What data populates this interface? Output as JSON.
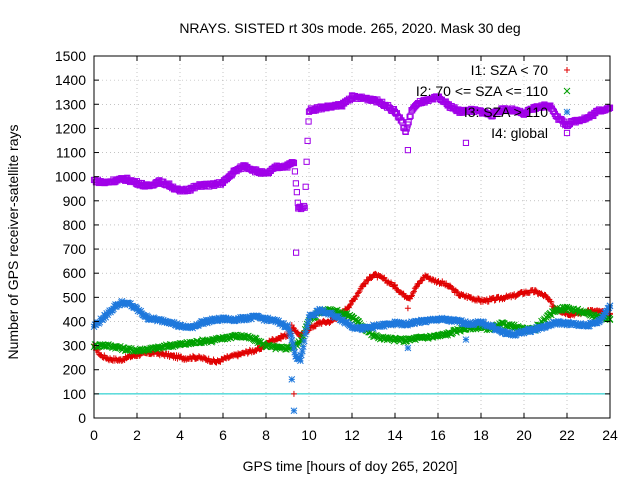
{
  "chart_data": {
    "type": "scatter",
    "title": "NRAYS. SISTED rt 30s mode. 265, 2020. Mask 30 deg",
    "xlabel": "GPS time [hours of doy 265, 2020]",
    "ylabel": "Number of GPS receiver-satellite rays",
    "xlim": [
      0,
      24
    ],
    "ylim": [
      0,
      1500
    ],
    "x_ticks": [
      "0",
      "2",
      "4",
      "6",
      "8",
      "10",
      "12",
      "14",
      "16",
      "18",
      "20",
      "22",
      "24"
    ],
    "y_ticks": [
      "0",
      "100",
      "200",
      "300",
      "400",
      "500",
      "600",
      "700",
      "800",
      "900",
      "1000",
      "1100",
      "1200",
      "1300",
      "1400",
      "1500"
    ],
    "grid": true,
    "legend_position": "top-right",
    "reference_line": {
      "y": 100,
      "color": "#00C8C8"
    },
    "series": [
      {
        "name": "I1: SZA < 70",
        "marker": "+",
        "color": "#E00000",
        "points": [
          [
            0,
            300
          ],
          [
            0.3,
            260
          ],
          [
            0.7,
            245
          ],
          [
            1.2,
            240
          ],
          [
            1.7,
            255
          ],
          [
            2.2,
            265
          ],
          [
            2.7,
            270
          ],
          [
            3.2,
            265
          ],
          [
            3.7,
            255
          ],
          [
            4.2,
            248
          ],
          [
            4.7,
            252
          ],
          [
            5.2,
            245
          ],
          [
            5.7,
            232
          ],
          [
            6.2,
            250
          ],
          [
            6.7,
            262
          ],
          [
            7.2,
            275
          ],
          [
            7.7,
            285
          ],
          [
            8.2,
            320
          ],
          [
            8.7,
            335
          ],
          [
            9.0,
            345
          ],
          [
            9.3,
            370
          ],
          [
            9.6,
            340
          ],
          [
            10.0,
            370
          ],
          [
            10.5,
            395
          ],
          [
            11.0,
            400
          ],
          [
            11.5,
            430
          ],
          [
            12.0,
            480
          ],
          [
            12.5,
            550
          ],
          [
            13.0,
            595
          ],
          [
            13.5,
            575
          ],
          [
            14.0,
            545
          ],
          [
            14.4,
            510
          ],
          [
            14.7,
            500
          ],
          [
            15.0,
            545
          ],
          [
            15.4,
            590
          ],
          [
            15.8,
            570
          ],
          [
            16.2,
            560
          ],
          [
            16.6,
            540
          ],
          [
            17.0,
            510
          ],
          [
            17.5,
            500
          ],
          [
            18.0,
            485
          ],
          [
            18.5,
            490
          ],
          [
            19.0,
            498
          ],
          [
            19.5,
            505
          ],
          [
            20.0,
            520
          ],
          [
            20.5,
            525
          ],
          [
            21.0,
            505
          ],
          [
            21.4,
            460
          ],
          [
            21.8,
            440
          ],
          [
            22.2,
            430
          ],
          [
            22.6,
            435
          ],
          [
            23.0,
            445
          ],
          [
            23.5,
            440
          ],
          [
            24.0,
            430
          ]
        ]
      },
      {
        "name": "I2: 70 <= SZA <= 110",
        "marker": "x",
        "color": "#00A000",
        "points": [
          [
            0,
            300
          ],
          [
            0.5,
            302
          ],
          [
            1.0,
            295
          ],
          [
            1.5,
            285
          ],
          [
            2.0,
            280
          ],
          [
            2.5,
            285
          ],
          [
            3.0,
            290
          ],
          [
            3.5,
            300
          ],
          [
            4.0,
            305
          ],
          [
            4.5,
            310
          ],
          [
            5.0,
            318
          ],
          [
            5.5,
            322
          ],
          [
            6.0,
            330
          ],
          [
            6.5,
            340
          ],
          [
            7.0,
            338
          ],
          [
            7.5,
            325
          ],
          [
            8.0,
            300
          ],
          [
            8.5,
            290
          ],
          [
            9.0,
            290
          ],
          [
            9.3,
            300
          ],
          [
            9.6,
            315
          ],
          [
            10.0,
            405
          ],
          [
            10.5,
            440
          ],
          [
            11.0,
            450
          ],
          [
            11.5,
            435
          ],
          [
            12.0,
            420
          ],
          [
            12.5,
            380
          ],
          [
            13.0,
            340
          ],
          [
            13.5,
            330
          ],
          [
            14.0,
            325
          ],
          [
            14.5,
            322
          ],
          [
            15.0,
            330
          ],
          [
            15.5,
            335
          ],
          [
            16.0,
            340
          ],
          [
            16.5,
            350
          ],
          [
            17.0,
            365
          ],
          [
            17.5,
            375
          ],
          [
            18.0,
            375
          ],
          [
            18.5,
            370
          ],
          [
            19.0,
            390
          ],
          [
            19.5,
            380
          ],
          [
            20.0,
            365
          ],
          [
            20.5,
            370
          ],
          [
            21.0,
            410
          ],
          [
            21.5,
            450
          ],
          [
            22.0,
            455
          ],
          [
            22.5,
            445
          ],
          [
            23.0,
            430
          ],
          [
            23.5,
            420
          ],
          [
            24.0,
            410
          ]
        ]
      },
      {
        "name": "I3: SZA > 110",
        "marker": "*",
        "color": "#1E78DC",
        "points": [
          [
            0,
            380
          ],
          [
            0.5,
            420
          ],
          [
            1.0,
            465
          ],
          [
            1.3,
            478
          ],
          [
            1.7,
            470
          ],
          [
            2.0,
            450
          ],
          [
            2.5,
            415
          ],
          [
            3.0,
            405
          ],
          [
            3.5,
            400
          ],
          [
            4.0,
            380
          ],
          [
            4.5,
            375
          ],
          [
            5.0,
            395
          ],
          [
            5.5,
            405
          ],
          [
            6.0,
            410
          ],
          [
            6.5,
            408
          ],
          [
            7.0,
            412
          ],
          [
            7.5,
            418
          ],
          [
            8.0,
            410
          ],
          [
            8.5,
            400
          ],
          [
            9.0,
            380
          ],
          [
            9.2,
            330
          ],
          [
            9.4,
            250
          ],
          [
            9.6,
            238
          ],
          [
            10.0,
            420
          ],
          [
            10.5,
            445
          ],
          [
            11.0,
            430
          ],
          [
            11.5,
            410
          ],
          [
            12.0,
            380
          ],
          [
            12.5,
            370
          ],
          [
            13.0,
            378
          ],
          [
            13.5,
            385
          ],
          [
            14.0,
            392
          ],
          [
            14.5,
            388
          ],
          [
            15.0,
            398
          ],
          [
            15.5,
            402
          ],
          [
            16.0,
            410
          ],
          [
            16.5,
            405
          ],
          [
            17.0,
            400
          ],
          [
            17.5,
            390
          ],
          [
            18.0,
            395
          ],
          [
            18.5,
            380
          ],
          [
            19.0,
            355
          ],
          [
            19.5,
            345
          ],
          [
            20.0,
            358
          ],
          [
            20.5,
            368
          ],
          [
            21.0,
            380
          ],
          [
            21.5,
            395
          ],
          [
            22.0,
            392
          ],
          [
            22.5,
            386
          ],
          [
            23.0,
            385
          ],
          [
            23.5,
            400
          ],
          [
            24.0,
            465
          ]
        ]
      },
      {
        "name": "I4: global",
        "marker": "square",
        "color": "#A000E8",
        "points": [
          [
            0,
            985
          ],
          [
            0.5,
            975
          ],
          [
            1.0,
            985
          ],
          [
            1.5,
            990
          ],
          [
            2.0,
            975
          ],
          [
            2.5,
            960
          ],
          [
            3.0,
            980
          ],
          [
            3.5,
            965
          ],
          [
            4.0,
            940
          ],
          [
            4.5,
            950
          ],
          [
            5.0,
            965
          ],
          [
            5.5,
            965
          ],
          [
            6.0,
            975
          ],
          [
            6.5,
            1020
          ],
          [
            7.0,
            1045
          ],
          [
            7.5,
            1025
          ],
          [
            8.0,
            1010
          ],
          [
            8.5,
            1040
          ],
          [
            9.0,
            1045
          ],
          [
            9.3,
            1060
          ],
          [
            9.5,
            870
          ],
          [
            9.8,
            875
          ],
          [
            10.0,
            1275
          ],
          [
            10.5,
            1285
          ],
          [
            11.0,
            1290
          ],
          [
            11.5,
            1295
          ],
          [
            12.0,
            1330
          ],
          [
            12.5,
            1325
          ],
          [
            13.0,
            1320
          ],
          [
            13.5,
            1300
          ],
          [
            14.0,
            1270
          ],
          [
            14.3,
            1230
          ],
          [
            14.5,
            1185
          ],
          [
            14.8,
            1280
          ],
          [
            15.2,
            1310
          ],
          [
            15.6,
            1315
          ],
          [
            16.0,
            1330
          ],
          [
            16.5,
            1295
          ],
          [
            17.0,
            1270
          ],
          [
            17.5,
            1275
          ],
          [
            18.0,
            1270
          ],
          [
            18.5,
            1255
          ],
          [
            19.0,
            1280
          ],
          [
            19.5,
            1275
          ],
          [
            20.0,
            1260
          ],
          [
            20.5,
            1285
          ],
          [
            21.0,
            1295
          ],
          [
            21.3,
            1285
          ],
          [
            21.6,
            1240
          ],
          [
            22.0,
            1215
          ],
          [
            22.5,
            1235
          ],
          [
            23.0,
            1245
          ],
          [
            23.5,
            1275
          ],
          [
            24.0,
            1285
          ]
        ]
      }
    ],
    "outliers": {
      "I4: global": [
        [
          9.2,
          1060
        ],
        [
          9.4,
          685
        ],
        [
          14.6,
          1110
        ],
        [
          17.3,
          1140
        ]
      ],
      "I3: SZA > 110": [
        [
          9.2,
          160
        ],
        [
          9.3,
          30
        ],
        [
          14.6,
          290
        ],
        [
          17.3,
          325
        ]
      ],
      "I1: SZA < 70": [
        [
          9.2,
          385
        ],
        [
          9.3,
          100
        ],
        [
          14.6,
          455
        ]
      ]
    }
  }
}
